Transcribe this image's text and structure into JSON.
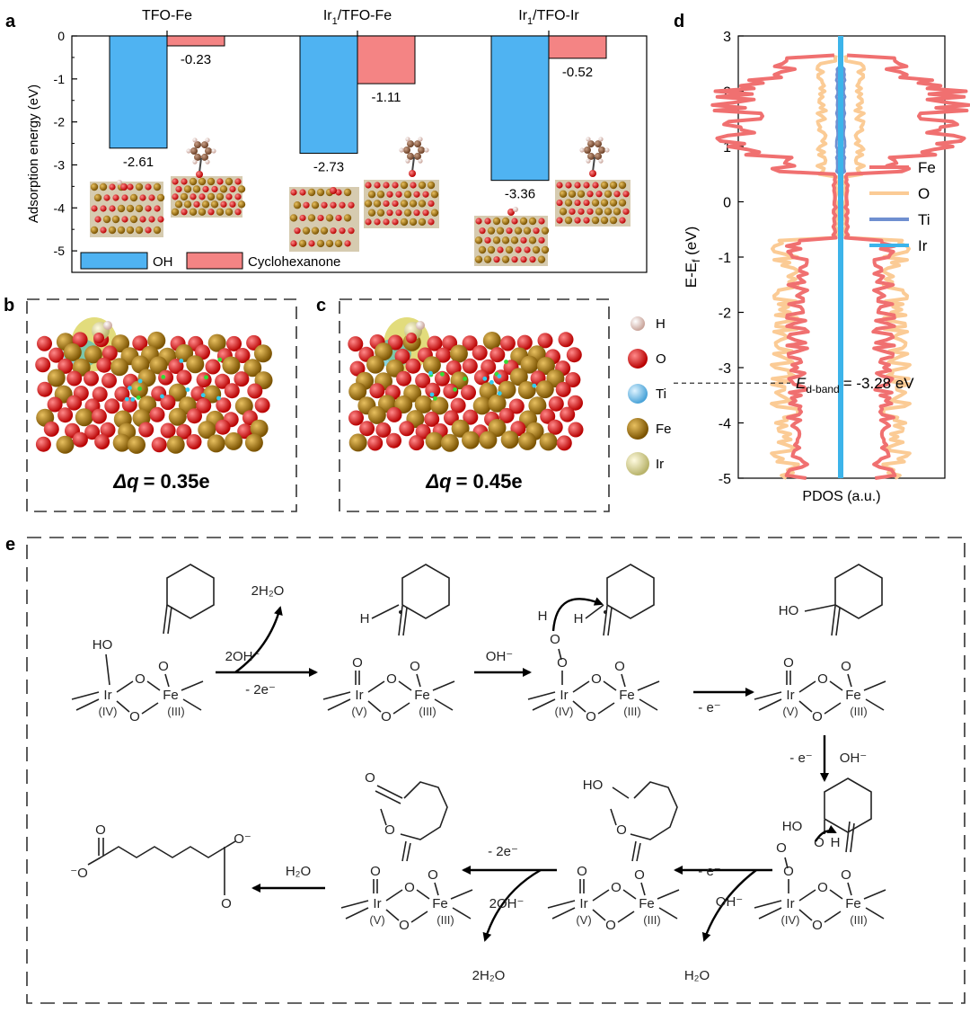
{
  "panel_labels": {
    "a": "a",
    "b": "b",
    "c": "c",
    "d": "d",
    "e": "e"
  },
  "panel_a": {
    "ylabel": "Adsorption energy (eV)",
    "legend": {
      "oh": "OH",
      "cyclo": "Cyclohexanone"
    },
    "colors": {
      "oh": "#4FB3F2",
      "cyclo": "#F48484"
    }
  },
  "chart_data": [
    {
      "type": "bar",
      "categories": [
        "TFO-Fe",
        "Ir1/TFO-Fe",
        "Ir1/TFO-Ir"
      ],
      "series": [
        {
          "name": "OH",
          "values": [
            -2.61,
            -2.73,
            -3.36
          ],
          "labels": [
            "-2.61",
            "-2.73",
            "-3.36"
          ]
        },
        {
          "name": "Cyclohexanone",
          "values": [
            -0.23,
            -1.11,
            -0.52
          ],
          "labels": [
            "-0.23",
            "-1.11",
            "-0.52"
          ]
        }
      ],
      "ylabel": "Adsorption energy (eV)",
      "ylim": [
        -5.5,
        0
      ],
      "yticks": [
        "0",
        "-1",
        "-2",
        "-3",
        "-4",
        "-5"
      ],
      "legend": "bottom-left"
    },
    {
      "type": "line",
      "xlabel": "PDOS (a.u.)",
      "ylabel": "E-E_f (eV)",
      "ylim": [
        -5,
        3
      ],
      "yticks": [
        "3",
        "2",
        "1",
        "0",
        "-1",
        "-2",
        "-3",
        "-4",
        "-5"
      ],
      "series": [
        {
          "name": "Fe",
          "color": "#F07070"
        },
        {
          "name": "O",
          "color": "#FBCB95"
        },
        {
          "name": "Ti",
          "color": "#6F8FD0"
        },
        {
          "name": "Ir",
          "color": "#3CB4EA"
        }
      ],
      "annotation": {
        "name": "E_d-band",
        "value_label": "= -3.28 eV",
        "value": -3.28
      },
      "legend": "right"
    }
  ],
  "panel_b": {
    "dq_symbol": "Δq",
    "dq_value": "= 0.35e"
  },
  "panel_c": {
    "dq_symbol": "Δq",
    "dq_value": "= 0.45e"
  },
  "atom_legend": [
    "H",
    "O",
    "Ti",
    "Fe",
    "Ir"
  ],
  "atom_colors": {
    "H": "#F2D7D0",
    "O": "#E01818",
    "Ti": "#8CCBF0",
    "Fe": "#B8860B",
    "Ir": "#E5E3A5"
  },
  "scheme": {
    "reagent_2oh": "2OH⁻",
    "product_2h2o": "2H₂O",
    "minus_2e": "- 2e⁻",
    "oh_minus": "OH⁻",
    "minus_e": "- e⁻",
    "h2o": "H₂O",
    "ir": "Ir",
    "fe": "Fe",
    "oxidation": {
      "iv": "(IV)",
      "v": "(V)",
      "iii": "(III)"
    },
    "atoms": {
      "o": "O",
      "h": "H",
      "ho": "HO"
    },
    "adipate_o_minus": "⁻O",
    "adipate_o_minus_r": "O⁻"
  }
}
